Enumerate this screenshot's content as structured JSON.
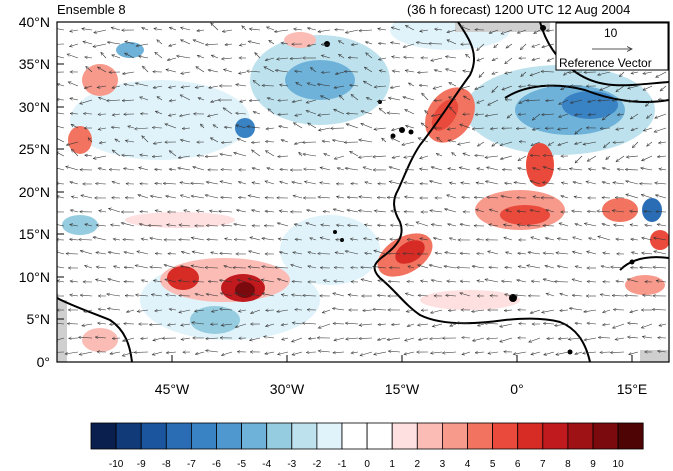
{
  "header": {
    "left_title": "Ensemble 8",
    "right_title": "(36 h forecast) 1200 UTC 12 Aug 2004"
  },
  "reference_vector": {
    "magnitude": "10",
    "label": "Reference Vector"
  },
  "axes": {
    "y_ticks": [
      "40°N",
      "35°N",
      "30°N",
      "25°N",
      "20°N",
      "15°N",
      "10°N",
      "5°N",
      "0°"
    ],
    "x_ticks": [
      "45°W",
      "30°W",
      "15°W",
      "0°",
      "15°E"
    ]
  },
  "colorbar": {
    "labels": [
      "-10",
      "-9",
      "-8",
      "-7",
      "-6",
      "-5",
      "-4",
      "-3",
      "-2",
      "-1",
      "0",
      "1",
      "2",
      "3",
      "4",
      "5",
      "6",
      "7",
      "8",
      "9",
      "10"
    ],
    "colors": [
      "#0a1f4d",
      "#103a78",
      "#1a559e",
      "#2a6db5",
      "#3982c4",
      "#4f98cf",
      "#6fb2d9",
      "#96ccdf",
      "#bde2ee",
      "#e0f3fa",
      "#ffffff",
      "#ffffff",
      "#fde0df",
      "#fbbcb6",
      "#f79a8c",
      "#f2735f",
      "#e94a3b",
      "#d72b26",
      "#c01a1e",
      "#9e1216",
      "#7a0a0e",
      "#4e0305"
    ]
  },
  "map": {
    "projection": "cylindrical equidistant",
    "lon_range": [
      -60,
      20
    ],
    "lat_range": [
      0,
      40
    ]
  }
}
